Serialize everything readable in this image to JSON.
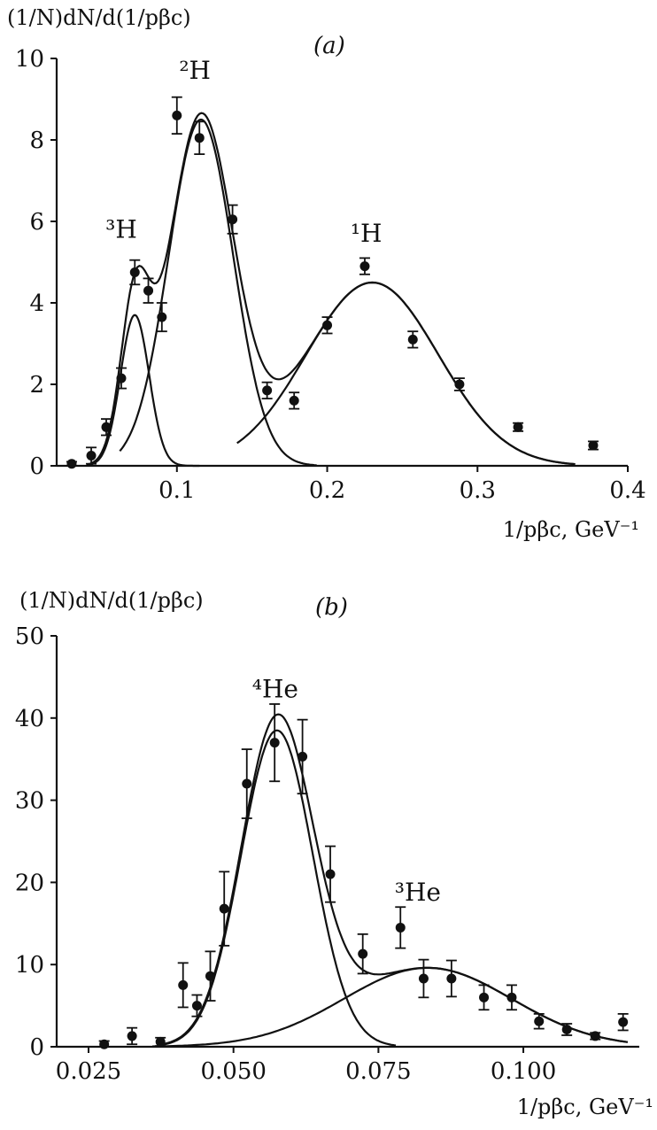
{
  "chart_data": [
    {
      "type": "scatter",
      "panel_label": "(a)",
      "ylabel": "(1/N)dN/d(1/pβc)",
      "xlabel": "1/pβc, GeV⁻¹",
      "xlim": [
        0.02,
        0.4
      ],
      "ylim": [
        0,
        10
      ],
      "xticks": [
        0.1,
        0.2,
        0.3,
        0.4
      ],
      "xtick_labels": [
        "0.1",
        "0.2",
        "0.3",
        "0.4"
      ],
      "yticks": [
        0,
        2,
        4,
        6,
        8,
        10
      ],
      "ytick_labels": [
        "0",
        "2",
        "4",
        "6",
        "8",
        "10"
      ],
      "points": [
        {
          "x": 0.03,
          "y": 0.05,
          "err": 0.05
        },
        {
          "x": 0.043,
          "y": 0.25,
          "err": 0.2
        },
        {
          "x": 0.053,
          "y": 0.95,
          "err": 0.2
        },
        {
          "x": 0.063,
          "y": 2.15,
          "err": 0.25
        },
        {
          "x": 0.072,
          "y": 4.75,
          "err": 0.3
        },
        {
          "x": 0.081,
          "y": 4.3,
          "err": 0.3
        },
        {
          "x": 0.09,
          "y": 3.65,
          "err": 0.35
        },
        {
          "x": 0.1,
          "y": 8.6,
          "err": 0.45
        },
        {
          "x": 0.115,
          "y": 8.05,
          "err": 0.4
        },
        {
          "x": 0.137,
          "y": 6.05,
          "err": 0.35
        },
        {
          "x": 0.16,
          "y": 1.85,
          "err": 0.2
        },
        {
          "x": 0.178,
          "y": 1.6,
          "err": 0.2
        },
        {
          "x": 0.2,
          "y": 3.45,
          "err": 0.2
        },
        {
          "x": 0.225,
          "y": 4.9,
          "err": 0.2
        },
        {
          "x": 0.257,
          "y": 3.1,
          "err": 0.2
        },
        {
          "x": 0.288,
          "y": 2.0,
          "err": 0.15
        },
        {
          "x": 0.327,
          "y": 0.95,
          "err": 0.1
        },
        {
          "x": 0.377,
          "y": 0.5,
          "err": 0.1
        }
      ],
      "components": [
        {
          "name": "³H",
          "amp": 3.7,
          "mu": 0.072,
          "sigma": 0.0095,
          "xmin": 0.04,
          "xmax": 0.115
        },
        {
          "name": "²H",
          "amp": 8.5,
          "mu": 0.116,
          "sigma": 0.0215,
          "xmin": 0.062,
          "xmax": 0.193
        },
        {
          "name": "¹H",
          "amp": 4.5,
          "mu": 0.23,
          "sigma": 0.044,
          "xmin": 0.14,
          "xmax": 0.365
        }
      ],
      "total_fit": {
        "xmin": 0.04,
        "xmax": 0.365
      },
      "annotations": [
        {
          "id": "label-3H",
          "text": "³H",
          "x": 0.063,
          "y": 5.6
        },
        {
          "id": "label-2H",
          "text": "²H",
          "x": 0.112,
          "y": 9.5
        },
        {
          "id": "label-1H",
          "text": "¹H",
          "x": 0.226,
          "y": 5.5
        }
      ]
    },
    {
      "type": "scatter",
      "panel_label": "(b)",
      "ylabel": "(1/N)dN/d(1/pβc)",
      "xlabel": "1/pβc, GeV⁻¹",
      "xlim": [
        0.0195,
        0.12
      ],
      "ylim": [
        0,
        50
      ],
      "xticks": [
        0.025,
        0.05,
        0.075,
        0.1
      ],
      "xtick_labels": [
        "0.025",
        "0.050",
        "0.075",
        "0.100"
      ],
      "yticks": [
        0,
        10,
        20,
        30,
        40,
        50
      ],
      "ytick_labels": [
        "0",
        "10",
        "20",
        "30",
        "40",
        "50"
      ],
      "points": [
        {
          "x": 0.0277,
          "y": 0.3,
          "err": 0.4
        },
        {
          "x": 0.0325,
          "y": 1.3,
          "err": 1.0
        },
        {
          "x": 0.0374,
          "y": 0.6,
          "err": 0.5
        },
        {
          "x": 0.0413,
          "y": 7.5,
          "err": 2.7
        },
        {
          "x": 0.0437,
          "y": 5.0,
          "err": 1.3
        },
        {
          "x": 0.046,
          "y": 8.6,
          "err": 3.0
        },
        {
          "x": 0.0484,
          "y": 16.8,
          "err": 4.5
        },
        {
          "x": 0.0523,
          "y": 32.0,
          "err": 4.2
        },
        {
          "x": 0.0571,
          "y": 37.0,
          "err": 4.7
        },
        {
          "x": 0.0619,
          "y": 35.3,
          "err": 4.5
        },
        {
          "x": 0.0667,
          "y": 21.0,
          "err": 3.4
        },
        {
          "x": 0.0723,
          "y": 11.3,
          "err": 2.4
        },
        {
          "x": 0.0788,
          "y": 14.5,
          "err": 2.5
        },
        {
          "x": 0.0828,
          "y": 8.3,
          "err": 2.3
        },
        {
          "x": 0.0876,
          "y": 8.3,
          "err": 2.2
        },
        {
          "x": 0.0932,
          "y": 6.0,
          "err": 1.5
        },
        {
          "x": 0.098,
          "y": 6.0,
          "err": 1.5
        },
        {
          "x": 0.1027,
          "y": 3.1,
          "err": 0.9
        },
        {
          "x": 0.1075,
          "y": 2.1,
          "err": 0.7
        },
        {
          "x": 0.1124,
          "y": 1.3,
          "err": 0.4
        },
        {
          "x": 0.1172,
          "y": 3.0,
          "err": 1.0
        }
      ],
      "components": [
        {
          "name": "⁴He",
          "amp": 38.5,
          "mu": 0.0575,
          "sigma": 0.0062,
          "xmin": 0.038,
          "xmax": 0.078
        },
        {
          "name": "³He",
          "amp": 9.6,
          "mu": 0.0835,
          "sigma": 0.0145,
          "xmin": 0.036,
          "xmax": 0.118
        }
      ],
      "total_fit": {
        "xmin": 0.038,
        "xmax": 0.118
      },
      "annotations": [
        {
          "id": "label-4He",
          "text": "⁴He",
          "x": 0.0572,
          "y": 42.5
        },
        {
          "id": "label-3He",
          "text": "³He",
          "x": 0.0818,
          "y": 17.8
        }
      ]
    }
  ]
}
